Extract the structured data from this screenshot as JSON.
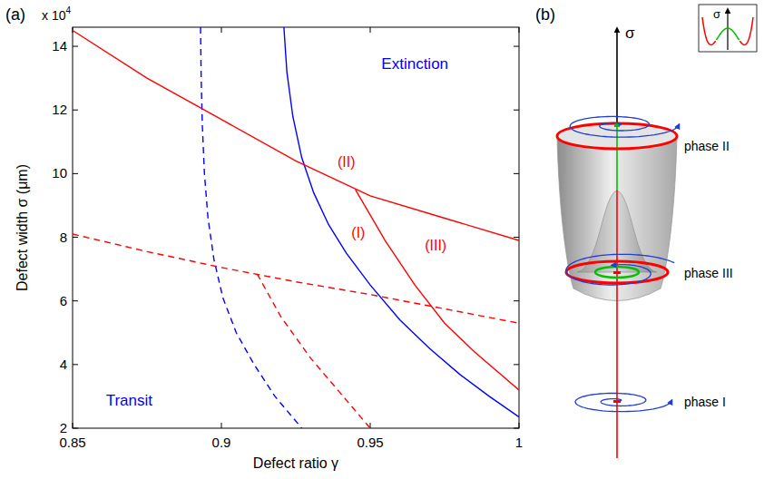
{
  "chart_data": {
    "type": "line",
    "panel_label": "(a)",
    "xlabel": "Defect ratio γ",
    "ylabel": "Defect width σ (μm)",
    "y_multiplier": {
      "base": "x 10",
      "exponent": "4"
    },
    "xlim": [
      0.85,
      1
    ],
    "xticks": [
      0.85,
      0.9,
      0.95,
      1
    ],
    "ylim": [
      2,
      14.6
    ],
    "yticks": [
      2,
      4,
      6,
      8,
      10,
      12,
      14
    ],
    "grid": false,
    "series": [
      {
        "color": "#0000ff",
        "line_style": "solid",
        "x": [
          0.921,
          0.922,
          0.924,
          0.927,
          0.931,
          0.936,
          0.942,
          0.95,
          0.96,
          0.97,
          0.98,
          0.99,
          1.0
        ],
        "values": [
          14.6,
          13.2,
          11.8,
          10.5,
          9.4,
          8.4,
          7.5,
          6.5,
          5.4,
          4.5,
          3.7,
          3.0,
          2.35
        ]
      },
      {
        "color": "#0000ff",
        "line_style": "dashed",
        "x": [
          0.893,
          0.8932,
          0.8936,
          0.8943,
          0.8955,
          0.8975,
          0.9005,
          0.905,
          0.911,
          0.918,
          0.927
        ],
        "values": [
          14.6,
          13,
          11.5,
          10,
          8.6,
          7.3,
          6.1,
          5,
          4,
          3,
          2
        ]
      },
      {
        "color": "#ff0000",
        "line_style": "solid",
        "x": [
          0.85,
          0.875,
          0.9,
          0.925,
          0.95,
          0.975,
          1.0
        ],
        "values": [
          14.5,
          13.0,
          11.7,
          10.4,
          9.3,
          8.6,
          7.9
        ]
      },
      {
        "color": "#ff0000",
        "line_style": "solid",
        "x": [
          0.945,
          0.955,
          0.965,
          0.975,
          0.985,
          1.0
        ],
        "values": [
          9.5,
          7.9,
          6.5,
          5.3,
          4.4,
          3.2
        ]
      },
      {
        "color": "#ff0000",
        "line_style": "dashed",
        "x": [
          0.85,
          0.875,
          0.9,
          0.925,
          0.95,
          0.975,
          1.0
        ],
        "values": [
          8.1,
          7.55,
          7.05,
          6.6,
          6.2,
          5.75,
          5.3
        ]
      },
      {
        "color": "#ff0000",
        "line_style": "dashed",
        "x": [
          0.912,
          0.92,
          0.93,
          0.94,
          0.95
        ],
        "values": [
          6.85,
          5.5,
          4.2,
          3.1,
          2.0
        ]
      }
    ],
    "annotations": [
      {
        "text": "Extinction",
        "color": "#0000ff"
      },
      {
        "text": "Transit",
        "color": "#0000ff"
      },
      {
        "text": "(II)",
        "color": "#ff0000"
      },
      {
        "text": "(I)",
        "color": "#ff0000"
      },
      {
        "text": "(III)",
        "color": "#ff0000"
      }
    ]
  },
  "diagram": {
    "label": "(b)",
    "axis_label": "σ",
    "phases": [
      {
        "label": "phase II"
      },
      {
        "label": "phase III"
      },
      {
        "label": "phase I"
      }
    ],
    "inset": {
      "axis_label": "σ"
    }
  }
}
